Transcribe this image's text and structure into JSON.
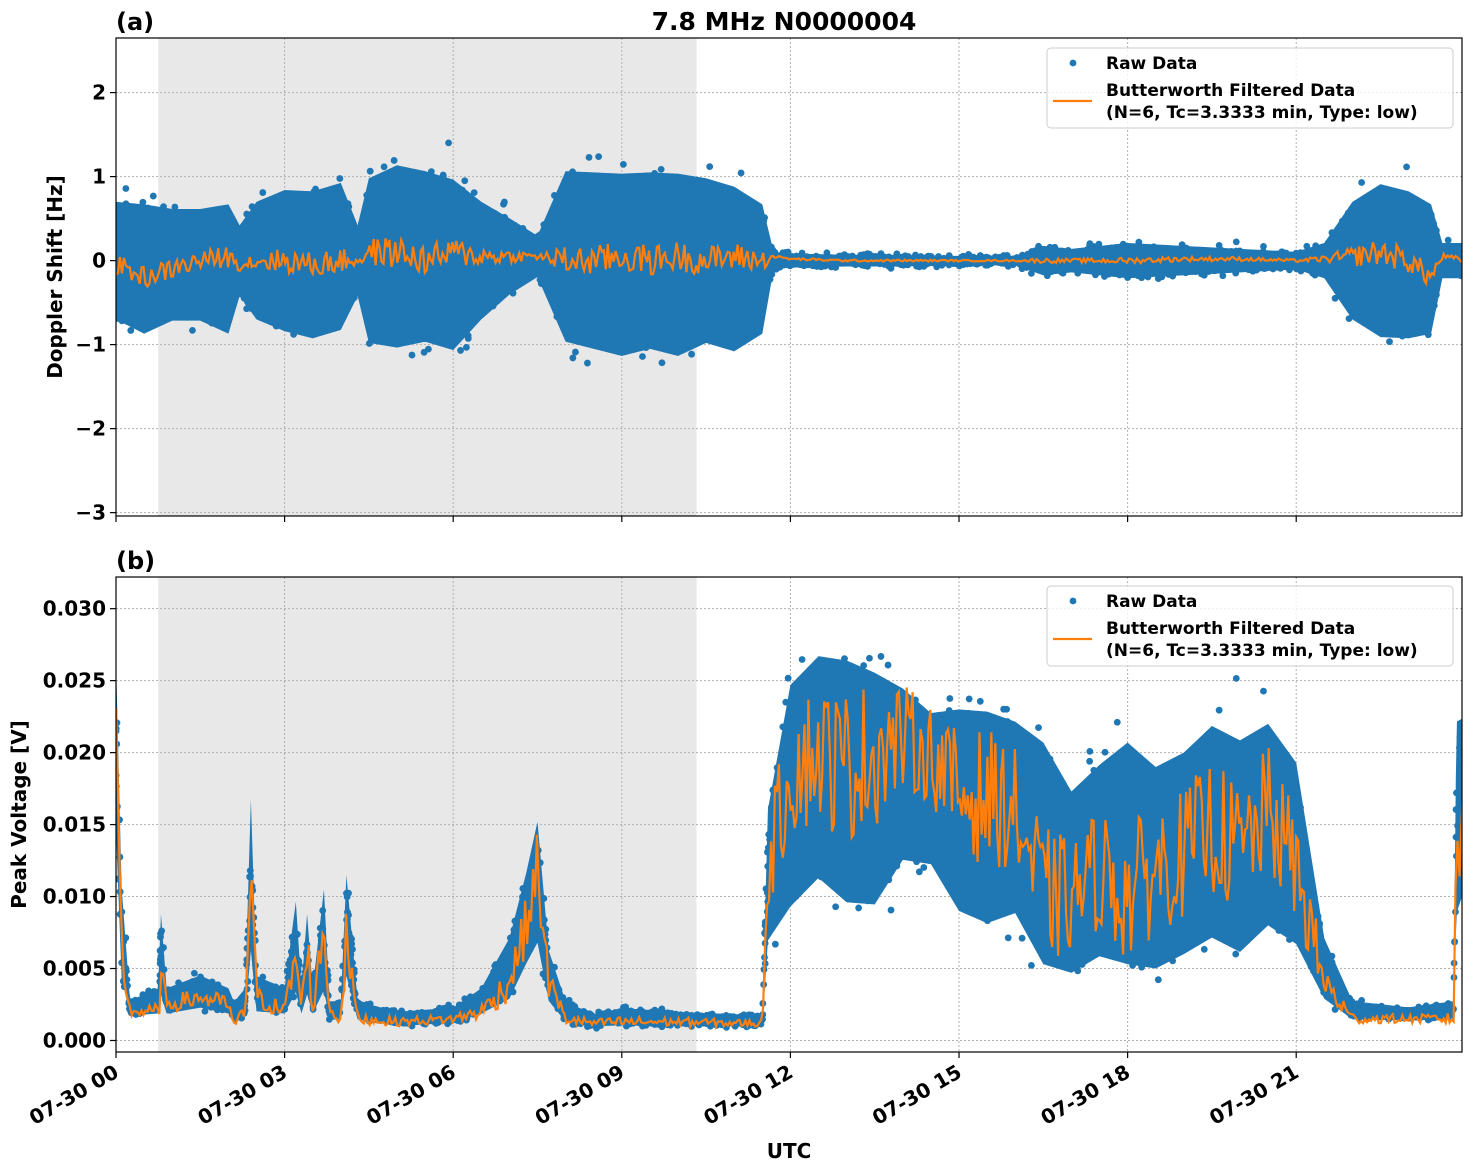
{
  "title": "7.8 MHz N0000004",
  "chart_data": [
    {
      "type": "scatter",
      "panel_label": "(a)",
      "title": "7.8 MHz N0000004",
      "xlabel": "",
      "ylabel": "Doppler Shift [Hz]",
      "xlim_hours": [
        0,
        23.95
      ],
      "ylim": [
        -3.04,
        2.65
      ],
      "yticks": [
        2,
        1,
        0,
        -1,
        -2,
        -3
      ],
      "ytick_labels": [
        "2",
        "1",
        "0",
        "−1",
        "−2",
        "−3"
      ],
      "grid": true,
      "legend_placement": "top-right",
      "shaded_span_utc": [
        "07-30 00:45",
        "07-30 10:20"
      ],
      "shaded_span_hours": [
        0.75,
        10.33
      ],
      "series": [
        {
          "name": "Raw Data",
          "kind": "points",
          "color": "#1f77b4"
        },
        {
          "name": "Butterworth Filtered Data\n(N=6, Tc=3.3333 min, Type: low)",
          "kind": "line",
          "color": "#ff7f0e"
        }
      ],
      "legend": [
        "Raw Data",
        "Butterworth Filtered Data",
        "(N=6, Tc=3.3333 min, Type: low)"
      ],
      "envelope_columns": [
        "hour_utc",
        "raw_min",
        "raw_max",
        "filtered"
      ],
      "envelope": [
        [
          0,
          -1.0,
          1.0,
          -0.05
        ],
        [
          0.5,
          -1.2,
          1.0,
          -0.2
        ],
        [
          1,
          -1.0,
          0.9,
          -0.1
        ],
        [
          1.5,
          -1.0,
          0.9,
          0.0
        ],
        [
          2,
          -1.2,
          1.0,
          0.05
        ],
        [
          2.2,
          -0.6,
          0.6,
          -0.05
        ],
        [
          2.5,
          -1.0,
          1.0,
          0.0
        ],
        [
          3,
          -1.2,
          1.2,
          0.0
        ],
        [
          3.5,
          -1.3,
          1.2,
          -0.05
        ],
        [
          4,
          -1.2,
          1.3,
          0.0
        ],
        [
          4.3,
          -0.6,
          0.6,
          0.0
        ],
        [
          4.5,
          -1.4,
          1.4,
          0.1
        ],
        [
          5,
          -1.5,
          1.6,
          0.1
        ],
        [
          5.5,
          -1.4,
          1.5,
          0.0
        ],
        [
          6,
          -1.5,
          1.4,
          0.1
        ],
        [
          6.5,
          -1.0,
          1.0,
          0.05
        ],
        [
          7,
          -0.6,
          0.7,
          0.05
        ],
        [
          7.5,
          -0.3,
          0.4,
          0.05
        ],
        [
          8,
          -1.4,
          1.5,
          0.0
        ],
        [
          8.5,
          -1.5,
          1.5,
          0.0
        ],
        [
          9,
          -1.6,
          1.5,
          0.05
        ],
        [
          9.5,
          -1.5,
          1.5,
          0.0
        ],
        [
          10,
          -1.6,
          1.5,
          0.05
        ],
        [
          10.5,
          -1.4,
          1.4,
          0.0
        ],
        [
          11,
          -1.5,
          1.3,
          0.05
        ],
        [
          11.5,
          -1.2,
          1.0,
          0.0
        ],
        [
          11.7,
          -0.15,
          0.15,
          0.05
        ],
        [
          12,
          -0.12,
          0.12,
          0.02
        ],
        [
          13,
          -0.1,
          0.1,
          0.0
        ],
        [
          14,
          -0.1,
          0.1,
          0.0
        ],
        [
          15,
          -0.08,
          0.08,
          0.0
        ],
        [
          16,
          -0.08,
          0.08,
          0.0
        ],
        [
          16.5,
          -0.25,
          0.25,
          0.0
        ],
        [
          17,
          -0.2,
          0.2,
          0.0
        ],
        [
          18,
          -0.3,
          0.3,
          0.0
        ],
        [
          19,
          -0.25,
          0.25,
          0.02
        ],
        [
          20,
          -0.2,
          0.2,
          0.02
        ],
        [
          21,
          -0.15,
          0.15,
          0.0
        ],
        [
          21.5,
          -0.3,
          0.3,
          0.02
        ],
        [
          22,
          -1.0,
          1.0,
          0.05
        ],
        [
          22.5,
          -1.3,
          1.3,
          0.1
        ],
        [
          23,
          -1.3,
          1.2,
          0.0
        ],
        [
          23.4,
          -1.2,
          1.0,
          -0.2
        ],
        [
          23.6,
          -0.3,
          0.3,
          0.05
        ],
        [
          24,
          -0.3,
          0.3,
          0.0
        ]
      ]
    },
    {
      "type": "scatter",
      "panel_label": "(b)",
      "xlabel": "UTC",
      "ylabel": "Peak Voltage [V]",
      "xlim_hours": [
        0,
        23.95
      ],
      "ylim": [
        -0.0008,
        0.0322
      ],
      "yticks": [
        0.0,
        0.005,
        0.01,
        0.015,
        0.02,
        0.025,
        0.03
      ],
      "ytick_labels": [
        "0.000",
        "0.005",
        "0.010",
        "0.015",
        "0.020",
        "0.025",
        "0.030"
      ],
      "xticks_hours": [
        0,
        3,
        6,
        9,
        12,
        15,
        18,
        21
      ],
      "xtick_labels": [
        "07-30 00",
        "07-30 03",
        "07-30 06",
        "07-30 09",
        "07-30 12",
        "07-30 15",
        "07-30 18",
        "07-30 21"
      ],
      "grid": true,
      "legend_placement": "top-right",
      "shaded_span_utc": [
        "07-30 00:45",
        "07-30 10:20"
      ],
      "shaded_span_hours": [
        0.75,
        10.33
      ],
      "series": [
        {
          "name": "Raw Data",
          "kind": "points",
          "color": "#1f77b4"
        },
        {
          "name": "Butterworth Filtered Data\n(N=6, Tc=3.3333 min, Type: low)",
          "kind": "line",
          "color": "#ff7f0e"
        }
      ],
      "legend": [
        "Raw Data",
        "Butterworth Filtered Data",
        "(N=6, Tc=3.3333 min, Type: low)"
      ],
      "envelope_columns": [
        "hour_utc",
        "raw_min",
        "raw_max",
        "filtered"
      ],
      "envelope": [
        [
          0,
          0.012,
          0.029,
          0.02
        ],
        [
          0.1,
          0.003,
          0.012,
          0.006
        ],
        [
          0.25,
          0.0015,
          0.003,
          0.002
        ],
        [
          0.75,
          0.0015,
          0.004,
          0.002
        ],
        [
          0.8,
          0.002,
          0.01,
          0.004
        ],
        [
          0.9,
          0.0015,
          0.004,
          0.0025
        ],
        [
          1.5,
          0.0018,
          0.005,
          0.003
        ],
        [
          2,
          0.0015,
          0.004,
          0.0025
        ],
        [
          2.1,
          0.0008,
          0.003,
          0.001
        ],
        [
          2.3,
          0.0015,
          0.004,
          0.002
        ],
        [
          2.4,
          0.004,
          0.019,
          0.013
        ],
        [
          2.5,
          0.0015,
          0.005,
          0.003
        ],
        [
          3,
          0.0015,
          0.004,
          0.002
        ],
        [
          3.2,
          0.002,
          0.011,
          0.006
        ],
        [
          3.3,
          0.0015,
          0.004,
          0.002
        ],
        [
          3.4,
          0.002,
          0.01,
          0.007
        ],
        [
          3.5,
          0.0015,
          0.004,
          0.002
        ],
        [
          3.7,
          0.002,
          0.012,
          0.008
        ],
        [
          3.8,
          0.0012,
          0.003,
          0.002
        ],
        [
          4,
          0.0012,
          0.003,
          0.0015
        ],
        [
          4.1,
          0.003,
          0.013,
          0.007
        ],
        [
          4.3,
          0.0012,
          0.003,
          0.0015
        ],
        [
          5,
          0.0008,
          0.0022,
          0.0013
        ],
        [
          6,
          0.001,
          0.0025,
          0.0015
        ],
        [
          6.5,
          0.0015,
          0.004,
          0.002
        ],
        [
          7,
          0.002,
          0.008,
          0.004
        ],
        [
          7.3,
          0.004,
          0.013,
          0.008
        ],
        [
          7.5,
          0.005,
          0.017,
          0.012
        ],
        [
          7.7,
          0.002,
          0.007,
          0.004
        ],
        [
          8,
          0.001,
          0.003,
          0.0015
        ],
        [
          8.5,
          0.0008,
          0.002,
          0.0012
        ],
        [
          9,
          0.0008,
          0.0025,
          0.0013
        ],
        [
          10,
          0.0008,
          0.0022,
          0.0013
        ],
        [
          11,
          0.0008,
          0.002,
          0.0012
        ],
        [
          11.5,
          0.0008,
          0.002,
          0.0012
        ],
        [
          11.6,
          0.005,
          0.018,
          0.012
        ],
        [
          12,
          0.006,
          0.028,
          0.019
        ],
        [
          12.5,
          0.008,
          0.03,
          0.02
        ],
        [
          13,
          0.006,
          0.03,
          0.019
        ],
        [
          13.5,
          0.006,
          0.029,
          0.02
        ],
        [
          14,
          0.01,
          0.027,
          0.021
        ],
        [
          14.5,
          0.01,
          0.025,
          0.02
        ],
        [
          15,
          0.006,
          0.026,
          0.017
        ],
        [
          15.5,
          0.005,
          0.026,
          0.017
        ],
        [
          16,
          0.006,
          0.025,
          0.016
        ],
        [
          16.5,
          0.002,
          0.024,
          0.01
        ],
        [
          17,
          0.002,
          0.02,
          0.01
        ],
        [
          17.5,
          0.003,
          0.022,
          0.012
        ],
        [
          18,
          0.002,
          0.024,
          0.01
        ],
        [
          18.5,
          0.002,
          0.022,
          0.012
        ],
        [
          19,
          0.003,
          0.023,
          0.013
        ],
        [
          19.5,
          0.004,
          0.025,
          0.015
        ],
        [
          20,
          0.003,
          0.024,
          0.013
        ],
        [
          20.5,
          0.005,
          0.025,
          0.016
        ],
        [
          21,
          0.004,
          0.022,
          0.012
        ],
        [
          21.5,
          0.002,
          0.008,
          0.004
        ],
        [
          22,
          0.0012,
          0.003,
          0.0015
        ],
        [
          23,
          0.0012,
          0.0025,
          0.0015
        ],
        [
          23.8,
          0.0012,
          0.003,
          0.0015
        ],
        [
          23.85,
          0.006,
          0.025,
          0.014
        ],
        [
          24,
          0.008,
          0.025,
          0.015
        ]
      ]
    }
  ]
}
